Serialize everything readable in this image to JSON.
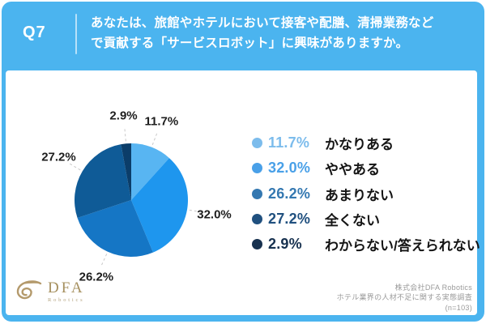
{
  "header": {
    "badge": "Q7",
    "question_line1": "あなたは、旅館やホテルにおいて接客や配膳、清掃業務など",
    "question_line2": "で貢献する「サービスロボット」に興味がありますか。"
  },
  "chart_data": {
    "type": "pie",
    "title": "",
    "categories": [
      "かなりある",
      "ややある",
      "あまりない",
      "全くない",
      "わからない/答えられない"
    ],
    "values": [
      11.7,
      32.0,
      26.2,
      27.2,
      2.9
    ],
    "unit": "%",
    "colors": [
      "#58B5F2",
      "#1E96EE",
      "#1576C5",
      "#0F5B97",
      "#0B3D69"
    ],
    "legend_colors": [
      "#7CBCEC",
      "#49A0E8",
      "#3478B1",
      "#20507F",
      "#17314F"
    ],
    "start_angle_deg": 0,
    "direction": "clockwise",
    "legend_position": "right",
    "labels_outside": true,
    "leader_line_color": "#C8C8C8"
  },
  "footer": {
    "logo_text": "DFA",
    "logo_subtext": "Robotics",
    "credit_line1": "株式会社DFA Robotics",
    "credit_line2": "ホテル業界の人材不足に関する実態調査",
    "credit_line3": "(n=103)"
  },
  "theme": {
    "band_color": "#4BB4EF",
    "card_color": "#FFFFFF",
    "logo_gold": "#B49A6C"
  }
}
